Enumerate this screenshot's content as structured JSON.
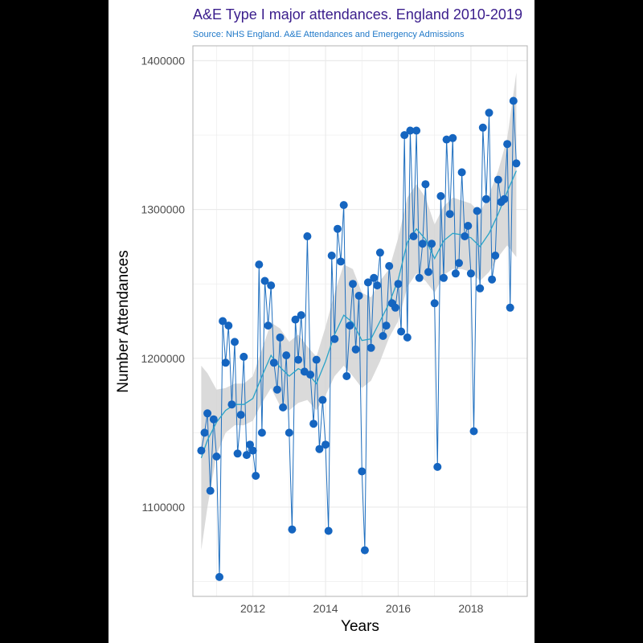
{
  "colors": {
    "title": "#3a1d8c",
    "subtitle": "#1f78c8",
    "line": "#1f6fbf",
    "trend": "#29a3c8",
    "ribbon": "#d3d3d3",
    "point": "#1565c0",
    "grid": "#ebebeb"
  },
  "chart_data": {
    "type": "line",
    "title": "A&E Type I major attendances. England 2010-2019",
    "subtitle": "Source: NHS England. A&E Attendances and Emergency Admissions",
    "xlabel": "Years",
    "ylabel": "Number Attendances",
    "xlim": [
      2010.35,
      2019.55
    ],
    "ylim": [
      1040000,
      1410000
    ],
    "x_ticks": [
      2012,
      2014,
      2016,
      2018
    ],
    "x_tick_labels": [
      "2012",
      "2014",
      "2016",
      "2018"
    ],
    "y_ticks": [
      1100000,
      1200000,
      1300000,
      1400000
    ],
    "y_tick_labels": [
      "1100000",
      "1200000",
      "1300000",
      "1400000"
    ],
    "grid": true,
    "series": [
      {
        "kind": "observed",
        "x": [
          2010.58,
          2010.67,
          2010.75,
          2010.83,
          2010.92,
          2011.0,
          2011.08,
          2011.17,
          2011.25,
          2011.33,
          2011.42,
          2011.5,
          2011.58,
          2011.67,
          2011.75,
          2011.83,
          2011.92,
          2012.0,
          2012.08,
          2012.17,
          2012.25,
          2012.33,
          2012.42,
          2012.5,
          2012.58,
          2012.67,
          2012.75,
          2012.83,
          2012.92,
          2013.0,
          2013.08,
          2013.17,
          2013.25,
          2013.33,
          2013.42,
          2013.5,
          2013.58,
          2013.67,
          2013.75,
          2013.83,
          2013.92,
          2014.0,
          2014.08,
          2014.17,
          2014.25,
          2014.33,
          2014.42,
          2014.5,
          2014.58,
          2014.67,
          2014.75,
          2014.83,
          2014.92,
          2015.0,
          2015.08,
          2015.17,
          2015.25,
          2015.33,
          2015.42,
          2015.5,
          2015.58,
          2015.67,
          2015.75,
          2015.83,
          2015.92,
          2016.0,
          2016.08,
          2016.17,
          2016.25,
          2016.33,
          2016.42,
          2016.5,
          2016.58,
          2016.67,
          2016.75,
          2016.83,
          2016.92,
          2017.0,
          2017.08,
          2017.17,
          2017.25,
          2017.33,
          2017.42,
          2017.5,
          2017.58,
          2017.67,
          2017.75,
          2017.83,
          2017.92,
          2018.0,
          2018.08,
          2018.17,
          2018.25,
          2018.33,
          2018.42,
          2018.5,
          2018.58,
          2018.67,
          2018.75,
          2018.83,
          2018.92,
          2019.0,
          2019.08,
          2019.17,
          2019.25
        ],
        "values": [
          1138000,
          1150000,
          1163000,
          1111000,
          1159000,
          1134000,
          1053000,
          1225000,
          1197000,
          1222000,
          1169000,
          1211000,
          1136000,
          1162000,
          1201000,
          1135000,
          1142000,
          1138000,
          1121000,
          1263000,
          1150000,
          1252000,
          1222000,
          1249000,
          1197000,
          1179000,
          1214000,
          1167000,
          1202000,
          1150000,
          1085000,
          1226000,
          1199000,
          1229000,
          1191000,
          1282000,
          1189000,
          1156000,
          1199000,
          1139000,
          1172000,
          1142000,
          1084000,
          1269000,
          1213000,
          1287000,
          1265000,
          1303000,
          1188000,
          1222000,
          1250000,
          1206000,
          1242000,
          1124000,
          1071000,
          1251000,
          1207000,
          1254000,
          1249000,
          1271000,
          1215000,
          1222000,
          1262000,
          1237000,
          1234000,
          1250000,
          1218000,
          1350000,
          1214000,
          1353000,
          1282000,
          1353000,
          1254000,
          1277000,
          1317000,
          1258000,
          1277000,
          1237000,
          1127000,
          1309000,
          1254000,
          1347000,
          1297000,
          1348000,
          1257000,
          1264000,
          1325000,
          1282000,
          1289000,
          1257000,
          1151000,
          1299000,
          1247000,
          1355000,
          1307000,
          1365000,
          1253000,
          1269000,
          1320000,
          1305000,
          1307000,
          1344000,
          1234000,
          1373000,
          1331000
        ]
      },
      {
        "kind": "smoothed",
        "x": [
          2010.58,
          2010.75,
          2011.0,
          2011.25,
          2011.5,
          2011.75,
          2012.0,
          2012.25,
          2012.5,
          2012.75,
          2013.0,
          2013.25,
          2013.5,
          2013.75,
          2014.0,
          2014.25,
          2014.5,
          2014.75,
          2015.0,
          2015.25,
          2015.5,
          2015.75,
          2016.0,
          2016.25,
          2016.5,
          2016.75,
          2017.0,
          2017.25,
          2017.5,
          2017.75,
          2018.0,
          2018.25,
          2018.5,
          2018.75,
          2019.0,
          2019.25
        ],
        "values": [
          1133000,
          1145000,
          1157000,
          1165000,
          1169000,
          1169000,
          1173000,
          1188000,
          1202000,
          1194000,
          1188000,
          1193000,
          1190000,
          1183000,
          1198000,
          1216000,
          1229000,
          1224000,
          1212000,
          1213000,
          1225000,
          1237000,
          1253000,
          1278000,
          1287000,
          1280000,
          1267000,
          1279000,
          1284000,
          1283000,
          1281000,
          1275000,
          1284000,
          1297000,
          1312000,
          1326000
        ],
        "lower": [
          1071000,
          1100000,
          1135000,
          1150000,
          1155000,
          1155000,
          1158000,
          1170000,
          1180000,
          1168000,
          1165000,
          1170000,
          1172000,
          1165000,
          1175000,
          1188000,
          1195000,
          1188000,
          1180000,
          1185000,
          1198000,
          1214000,
          1225000,
          1248000,
          1257000,
          1252000,
          1244000,
          1256000,
          1260000,
          1260000,
          1258000,
          1252000,
          1258000,
          1268000,
          1276000,
          1268000
        ],
        "upper": [
          1195000,
          1190000,
          1179000,
          1180000,
          1183000,
          1183000,
          1188000,
          1206000,
          1224000,
          1220000,
          1211000,
          1216000,
          1208000,
          1201000,
          1221000,
          1244000,
          1263000,
          1260000,
          1244000,
          1241000,
          1252000,
          1260000,
          1281000,
          1308000,
          1317000,
          1308000,
          1290000,
          1302000,
          1308000,
          1306000,
          1304000,
          1298000,
          1310000,
          1326000,
          1348000,
          1392000
        ]
      }
    ]
  }
}
